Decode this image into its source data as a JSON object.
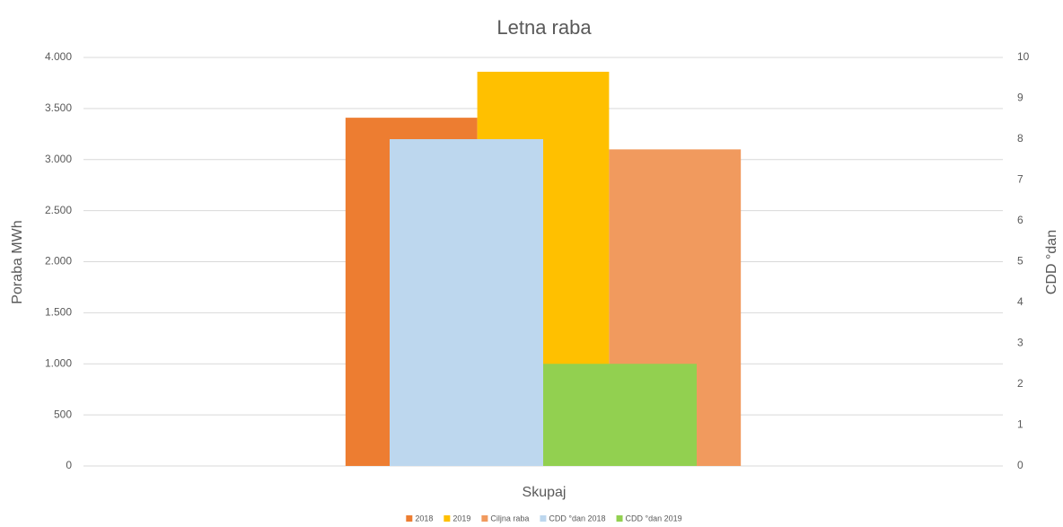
{
  "chart_data": {
    "type": "bar",
    "title": "Letna raba",
    "categories": [
      "Skupaj"
    ],
    "x_label": "Skupaj",
    "y_label": "Poraba MWh",
    "y2_label": "CDD °dan",
    "series": [
      {
        "name": "2018",
        "color": "#ed7d31",
        "values": [
          3410
        ]
      },
      {
        "name": "2019",
        "color": "#ffc000",
        "values": [
          3860
        ]
      },
      {
        "name": "Ciljna raba",
        "color": "#f19a5e",
        "values": [
          3100
        ]
      },
      {
        "name": "CDD °dan 2018",
        "color": "#bdd7ee",
        "values": [
          8
        ],
        "axis": "y2"
      },
      {
        "name": "CDD °dan 2019",
        "color": "#92d050",
        "values": [
          2.5
        ],
        "axis": "y2"
      }
    ],
    "ylim": [
      0,
      4000
    ],
    "yticks": [
      0,
      500,
      {
        "value": 1000,
        "label": "1.000"
      },
      {
        "value": 1500,
        "label": "1.500"
      },
      {
        "value": 2000,
        "label": "2.000"
      },
      {
        "value": 2500,
        "label": "2.500"
      },
      {
        "value": 3000,
        "label": "3.000"
      },
      {
        "value": 3500,
        "label": "3.500"
      },
      {
        "value": 4000,
        "label": "4.000"
      }
    ],
    "y2lim": [
      0,
      10
    ],
    "y2ticks": [
      0,
      1,
      2,
      3,
      4,
      5,
      6,
      7,
      8,
      9,
      10
    ],
    "grid": true,
    "legend": "bottom"
  }
}
